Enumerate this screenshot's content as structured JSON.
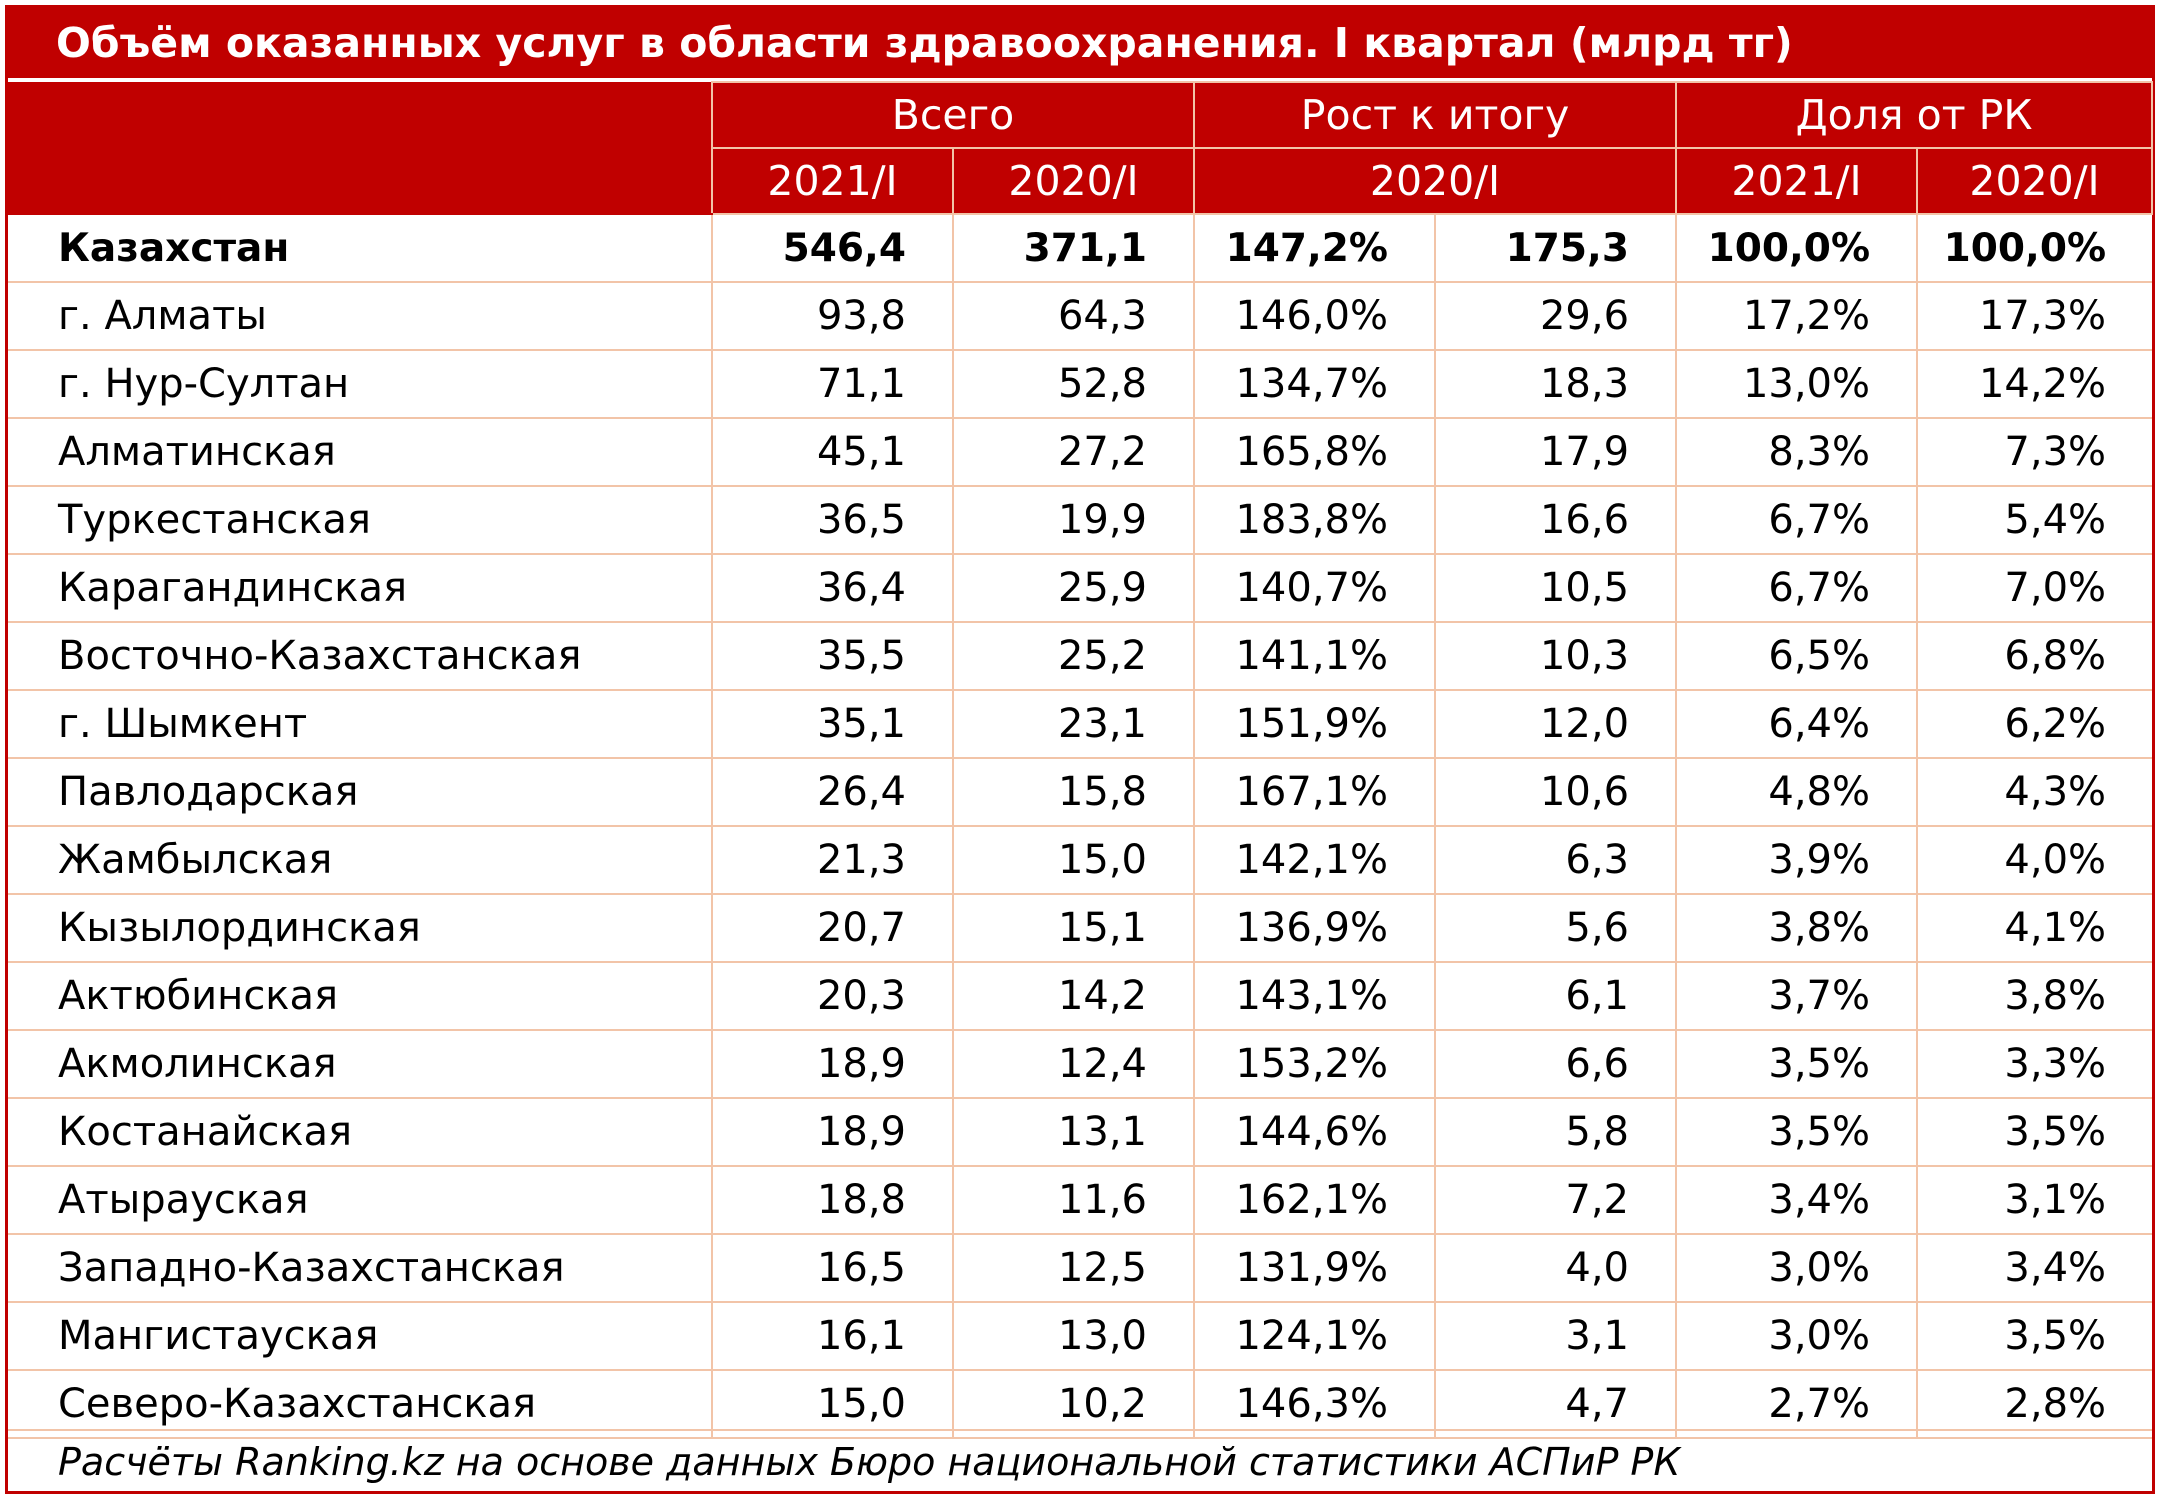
{
  "table": {
    "title": "Объём оказанных услуг в области здравоохранения. I квартал (млрд тг)",
    "header_groups": [
      "Всего",
      "Рост к итогу",
      "Доля от РК"
    ],
    "subheaders": [
      "2021/I",
      "2020/I",
      "2020/I",
      "2021/I",
      "2020/I"
    ],
    "rows": [
      [
        "Казахстан",
        "546,4",
        "371,1",
        "147,2%",
        "175,3",
        "100,0%",
        "100,0%"
      ],
      [
        "г. Алматы",
        "93,8",
        "64,3",
        "146,0%",
        "29,6",
        "17,2%",
        "17,3%"
      ],
      [
        "г. Нур-Султан",
        "71,1",
        "52,8",
        "134,7%",
        "18,3",
        "13,0%",
        "14,2%"
      ],
      [
        "Алматинская",
        "45,1",
        "27,2",
        "165,8%",
        "17,9",
        "8,3%",
        "7,3%"
      ],
      [
        "Туркестанская",
        "36,5",
        "19,9",
        "183,8%",
        "16,6",
        "6,7%",
        "5,4%"
      ],
      [
        "Карагандинская",
        "36,4",
        "25,9",
        "140,7%",
        "10,5",
        "6,7%",
        "7,0%"
      ],
      [
        "Восточно-Казахстанская",
        "35,5",
        "25,2",
        "141,1%",
        "10,3",
        "6,5%",
        "6,8%"
      ],
      [
        "г. Шымкент",
        "35,1",
        "23,1",
        "151,9%",
        "12,0",
        "6,4%",
        "6,2%"
      ],
      [
        "Павлодарская",
        "26,4",
        "15,8",
        "167,1%",
        "10,6",
        "4,8%",
        "4,3%"
      ],
      [
        "Жамбылская",
        "21,3",
        "15,0",
        "142,1%",
        "6,3",
        "3,9%",
        "4,0%"
      ],
      [
        "Кызылординская",
        "20,7",
        "15,1",
        "136,9%",
        "5,6",
        "3,8%",
        "4,1%"
      ],
      [
        "Актюбинская",
        "20,3",
        "14,2",
        "143,1%",
        "6,1",
        "3,7%",
        "3,8%"
      ],
      [
        "Акмолинская",
        "18,9",
        "12,4",
        "153,2%",
        "6,6",
        "3,5%",
        "3,3%"
      ],
      [
        "Костанайская",
        "18,9",
        "13,1",
        "144,6%",
        "5,8",
        "3,5%",
        "3,5%"
      ],
      [
        "Атырауская",
        "18,8",
        "11,6",
        "162,1%",
        "7,2",
        "3,4%",
        "3,1%"
      ],
      [
        "Западно-Казахстанская",
        "16,5",
        "12,5",
        "131,9%",
        "4,0",
        "3,0%",
        "3,4%"
      ],
      [
        "Мангистауская",
        "16,1",
        "13,0",
        "124,1%",
        "3,1",
        "3,0%",
        "3,5%"
      ],
      [
        "Северо-Казахстанская",
        "15,0",
        "10,2",
        "146,3%",
        "4,7",
        "2,7%",
        "2,8%"
      ]
    ],
    "source": "Расчёты Ranking.kz на основе данных Бюро национальной статистики АСПиР РК"
  },
  "chart_data": {
    "type": "table",
    "title": "Объём оказанных услуг в области здравоохранения. I квартал (млрд тг)",
    "column_groups": [
      {
        "name": "Всего",
        "columns": [
          "2021/I",
          "2020/I"
        ]
      },
      {
        "name": "Рост к итогу",
        "columns": [
          "2020/I"
        ],
        "span": 2
      },
      {
        "name": "Доля от РК",
        "columns": [
          "2021/I",
          "2020/I"
        ]
      }
    ],
    "columns": [
      "",
      "2021/I",
      "2020/I",
      "2020/I",
      "",
      "2021/I",
      "2020/I"
    ],
    "rows": [
      {
        "region": "Казахстан",
        "values": [
          546.4,
          371.1,
          147.2,
          175.3,
          100.0,
          100.0
        ]
      },
      {
        "region": "г. Алматы",
        "values": [
          93.8,
          64.3,
          146.0,
          29.6,
          17.2,
          17.3
        ]
      },
      {
        "region": "г. Нур-Султан",
        "values": [
          71.1,
          52.8,
          134.7,
          18.3,
          13.0,
          14.2
        ]
      },
      {
        "region": "Алматинская",
        "values": [
          45.1,
          27.2,
          165.8,
          17.9,
          8.3,
          7.3
        ]
      },
      {
        "region": "Туркестанская",
        "values": [
          36.5,
          19.9,
          183.8,
          16.6,
          6.7,
          5.4
        ]
      },
      {
        "region": "Карагандинская",
        "values": [
          36.4,
          25.9,
          140.7,
          10.5,
          6.7,
          7.0
        ]
      },
      {
        "region": "Восточно-Казахстанская",
        "values": [
          35.5,
          25.2,
          141.1,
          10.3,
          6.5,
          6.8
        ]
      },
      {
        "region": "г. Шымкент",
        "values": [
          35.1,
          23.1,
          151.9,
          12.0,
          6.4,
          6.2
        ]
      },
      {
        "region": "Павлодарская",
        "values": [
          26.4,
          15.8,
          167.1,
          10.6,
          4.8,
          4.3
        ]
      },
      {
        "region": "Жамбылская",
        "values": [
          21.3,
          15.0,
          142.1,
          6.3,
          3.9,
          4.0
        ]
      },
      {
        "region": "Кызылординская",
        "values": [
          20.7,
          15.1,
          136.9,
          5.6,
          3.8,
          4.1
        ]
      },
      {
        "region": "Актюбинская",
        "values": [
          20.3,
          14.2,
          143.1,
          6.1,
          3.7,
          3.8
        ]
      },
      {
        "region": "Акмолинская",
        "values": [
          18.9,
          12.4,
          153.2,
          6.6,
          3.5,
          3.3
        ]
      },
      {
        "region": "Костанайская",
        "values": [
          18.9,
          13.1,
          144.6,
          5.8,
          3.5,
          3.5
        ]
      },
      {
        "region": "Атырауская",
        "values": [
          18.8,
          11.6,
          162.1,
          7.2,
          3.4,
          3.1
        ]
      },
      {
        "region": "Западно-Казахстанская",
        "values": [
          16.5,
          12.5,
          131.9,
          4.0,
          3.0,
          3.4
        ]
      },
      {
        "region": "Мангистауская",
        "values": [
          16.1,
          13.0,
          124.1,
          3.1,
          3.0,
          3.5
        ]
      },
      {
        "region": "Северо-Казахстанская",
        "values": [
          15.0,
          10.2,
          146.3,
          4.7,
          2.7,
          2.8
        ]
      }
    ]
  }
}
